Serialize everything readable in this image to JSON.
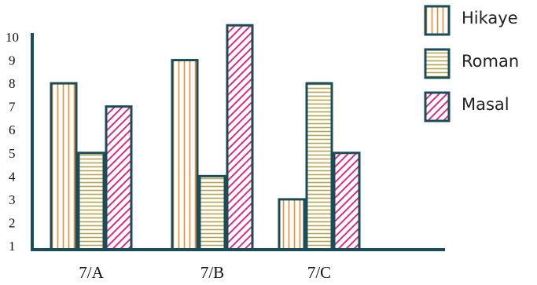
{
  "chart_data": {
    "type": "bar",
    "categories": [
      "7/A",
      "7/B",
      "7/C"
    ],
    "series": [
      {
        "name": "Hikaye",
        "values": [
          7,
          8,
          2
        ],
        "pattern": "vertical",
        "color": "#f08a2e"
      },
      {
        "name": "Roman",
        "values": [
          4,
          3,
          7
        ],
        "pattern": "horizontal",
        "color": "#b5a552"
      },
      {
        "name": "Masal",
        "values": [
          6,
          9.5,
          4
        ],
        "pattern": "diagonal",
        "color": "#e0157a"
      }
    ],
    "yticks": [
      1,
      2,
      3,
      4,
      5,
      6,
      7,
      8,
      9,
      10
    ],
    "ylim": [
      0,
      10
    ],
    "legend_position": "top-right",
    "bar_border_color": "#1a4d57",
    "axis_color": "#1a4d57"
  }
}
